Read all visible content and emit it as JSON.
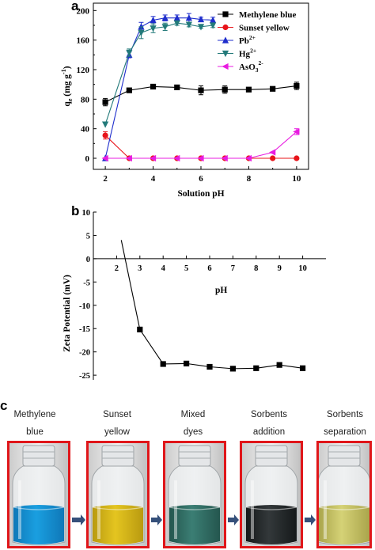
{
  "panels": {
    "a": {
      "letter": "a"
    },
    "b": {
      "letter": "b"
    },
    "c": {
      "letter": "c"
    }
  },
  "chart_data": [
    {
      "type": "line",
      "panel": "a",
      "xlabel": "Solution pH",
      "ylabel_main": "q",
      "ylabel_sub": "e",
      "ylabel_unit": " (mg g",
      "ylabel_exp": "-1",
      "ylabel_close": ")",
      "xlim": [
        1.5,
        10.5
      ],
      "ylim": [
        -15,
        210
      ],
      "x_ticks": [
        2,
        4,
        6,
        8,
        10
      ],
      "y_ticks": [
        0,
        40,
        80,
        120,
        160,
        200
      ],
      "grid": false,
      "legend_position": "top-right",
      "series": [
        {
          "name": "Methylene blue",
          "name_sup": "",
          "name_sub": "",
          "color": "#000000",
          "marker": "square",
          "x": [
            2,
            3,
            4,
            5,
            6,
            7,
            8,
            9,
            10
          ],
          "y": [
            76,
            92,
            97,
            96,
            92,
            93,
            93,
            94,
            98
          ],
          "err": [
            5,
            2,
            1,
            1,
            6,
            5,
            1,
            1,
            5
          ]
        },
        {
          "name": "Sunset yellow",
          "name_sup": "",
          "name_sub": "",
          "color": "#e8141a",
          "marker": "circle",
          "x": [
            2,
            3,
            4,
            5,
            6,
            7,
            8,
            9,
            10
          ],
          "y": [
            31,
            0,
            0,
            0,
            0,
            0,
            0,
            0,
            0
          ],
          "err": [
            5,
            0,
            0,
            0,
            0,
            0,
            0,
            0,
            0
          ]
        },
        {
          "name": "Pb",
          "name_sup": "2+",
          "name_sub": "",
          "color": "#1f2ecc",
          "marker": "triangle-up",
          "x": [
            2,
            3,
            3.5,
            4,
            4.5,
            5,
            5.5,
            6,
            6.5
          ],
          "y": [
            0,
            140,
            178,
            187,
            190,
            190,
            190,
            188,
            187
          ],
          "err": [
            0,
            4,
            6,
            5,
            4,
            4,
            6,
            3,
            4
          ]
        },
        {
          "name": "Hg",
          "name_sup": "2+",
          "name_sub": "",
          "color": "#237a7a",
          "marker": "triangle-down",
          "x": [
            2,
            3,
            3.5,
            4,
            4.5,
            5,
            5.5,
            6,
            6.5
          ],
          "y": [
            46,
            143,
            170,
            176,
            178,
            183,
            181,
            178,
            180
          ],
          "err": [
            0,
            5,
            8,
            6,
            5,
            3,
            3,
            2,
            3
          ]
        },
        {
          "name": "AsO",
          "name_sup": "2-",
          "name_sub": "3",
          "color": "#e81ce0",
          "marker": "triangle-left",
          "x": [
            2,
            3,
            4,
            5,
            6,
            7,
            8,
            9,
            10
          ],
          "y": [
            0,
            0,
            0,
            0,
            0,
            0,
            0,
            8,
            36
          ],
          "err": [
            0,
            0,
            0,
            0,
            0,
            0,
            0,
            0,
            4
          ]
        }
      ]
    },
    {
      "type": "line",
      "panel": "b",
      "xlabel": "pH",
      "ylabel": "Zeta Potential (mV)",
      "xlim": [
        1,
        11
      ],
      "ylim": [
        -26,
        10
      ],
      "x_ticks": [
        2,
        3,
        4,
        5,
        6,
        7,
        8,
        9,
        10
      ],
      "y_ticks": [
        10,
        5,
        0,
        -5,
        -10,
        -15,
        -20,
        -25
      ],
      "grid": false,
      "series": [
        {
          "name": "",
          "color": "#000000",
          "marker": "square",
          "x": [
            2.2,
            3,
            4,
            5,
            6,
            7,
            8,
            9,
            10
          ],
          "y": [
            4,
            -15.2,
            -22.6,
            -22.5,
            -23.2,
            -23.6,
            -23.5,
            -22.8,
            -23.5
          ]
        }
      ]
    }
  ],
  "photos": {
    "arrow_color": "#35507a",
    "frame_color": "#e0161a",
    "items": [
      {
        "label_line1": "Methylene",
        "label_line2": "blue",
        "liquid": "#1a9fe0",
        "liquid_dark": "#0f78b8"
      },
      {
        "label_line1": "Sunset",
        "label_line2": "yellow",
        "liquid": "#e4c520",
        "liquid_dark": "#b99a10"
      },
      {
        "label_line1": "Mixed",
        "label_line2": "dyes",
        "liquid": "#3b7e74",
        "liquid_dark": "#24564e"
      },
      {
        "label_line1": "Sorbents",
        "label_line2": "addition",
        "liquid": "#33383a",
        "liquid_dark": "#15191a"
      },
      {
        "label_line1": "Sorbents",
        "label_line2": "separation",
        "liquid": "#d5d276",
        "liquid_dark": "#aaa54c"
      }
    ]
  }
}
